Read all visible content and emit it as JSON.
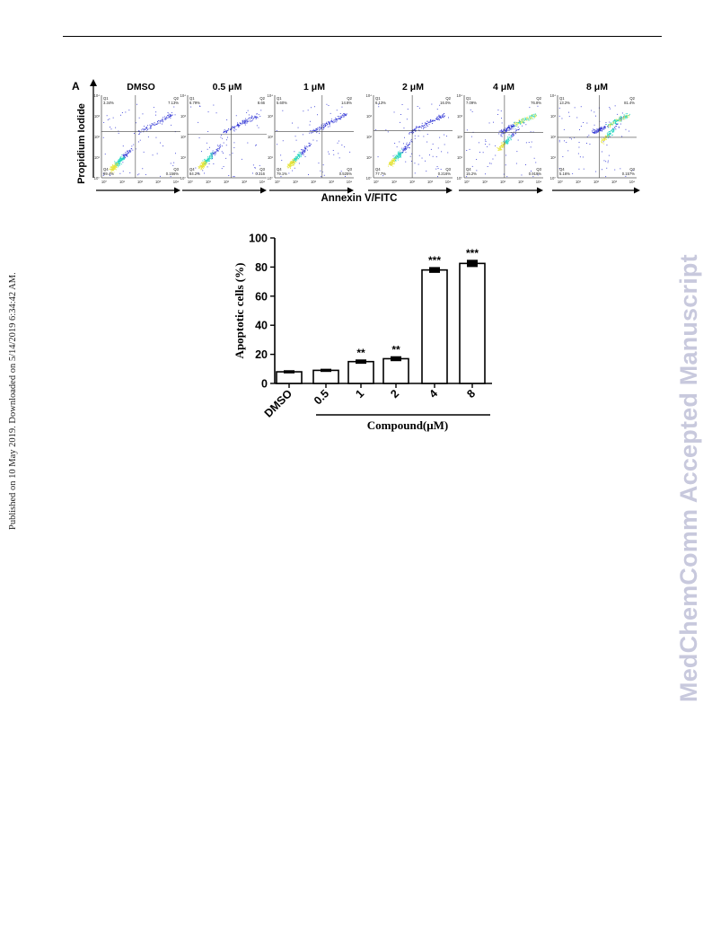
{
  "page": {
    "left_margin_text": "Published on 10 May 2019. Downloaded on 5/14/2019 6:34:42 AM.",
    "right_watermark": "MedChemComm Accepted Manuscript"
  },
  "colors": {
    "density_low": "#2d32d4",
    "density_mid": "#27d6c0",
    "density_high": "#e6e43a",
    "bar_fill": "#ffffff",
    "ink": "#000000"
  },
  "chart_data": [
    {
      "type": "scatter",
      "panel_label": "A",
      "ylabel": "Propidium Iodide",
      "xlabel": "Annexin V/FITC",
      "y_tick_labels": [
        "10⁰",
        "10¹",
        "10²",
        "10³",
        "10⁴"
      ],
      "x_tick_labels": [
        "10⁰",
        "10¹",
        "10²",
        "10³",
        "10⁴"
      ],
      "quadrant_labels": [
        "Q1",
        "Q2",
        "Q3",
        "Q4"
      ],
      "panels": [
        {
          "title": "DMSO",
          "q1": "3.34%",
          "q2": "7.13%",
          "q3": "0.156%",
          "q4": "89.4%"
        },
        {
          "title": "0.5 μM",
          "q1": "6.79%",
          "q2": "8.66",
          "q3": "0.316",
          "q4": "84.2%"
        },
        {
          "title": "1 μM",
          "q1": "5.60%",
          "q2": "14.8%",
          "q3": "0.525%",
          "q4": "79.1%"
        },
        {
          "title": "2 μM",
          "q1": "6.13%",
          "q2": "16.0%",
          "q3": "0.216%",
          "q4": "77.7%"
        },
        {
          "title": "4 μM",
          "q1": "7.09%",
          "q2": "76.8%",
          "q3": "0.919%",
          "q4": "15.2%"
        },
        {
          "title": "8 μM",
          "q1": "13.2%",
          "q2": "81.4%",
          "q3": "0.157%",
          "q4": "5.16%"
        }
      ]
    },
    {
      "type": "bar",
      "ylabel": "Apoptotic cells (%)",
      "xlabel": "Compound(μM)",
      "categories": [
        "DMSO",
        "0.5",
        "1",
        "2",
        "4",
        "8"
      ],
      "values": [
        8,
        9,
        15,
        17,
        78,
        82.5
      ],
      "errors": [
        0.6,
        0.6,
        1.0,
        1.2,
        1.5,
        2.0
      ],
      "significance": [
        "",
        "",
        "**",
        "**",
        "***",
        "***"
      ],
      "ylim": [
        0,
        100
      ],
      "y_ticks": [
        0,
        20,
        40,
        60,
        80,
        100
      ]
    }
  ]
}
